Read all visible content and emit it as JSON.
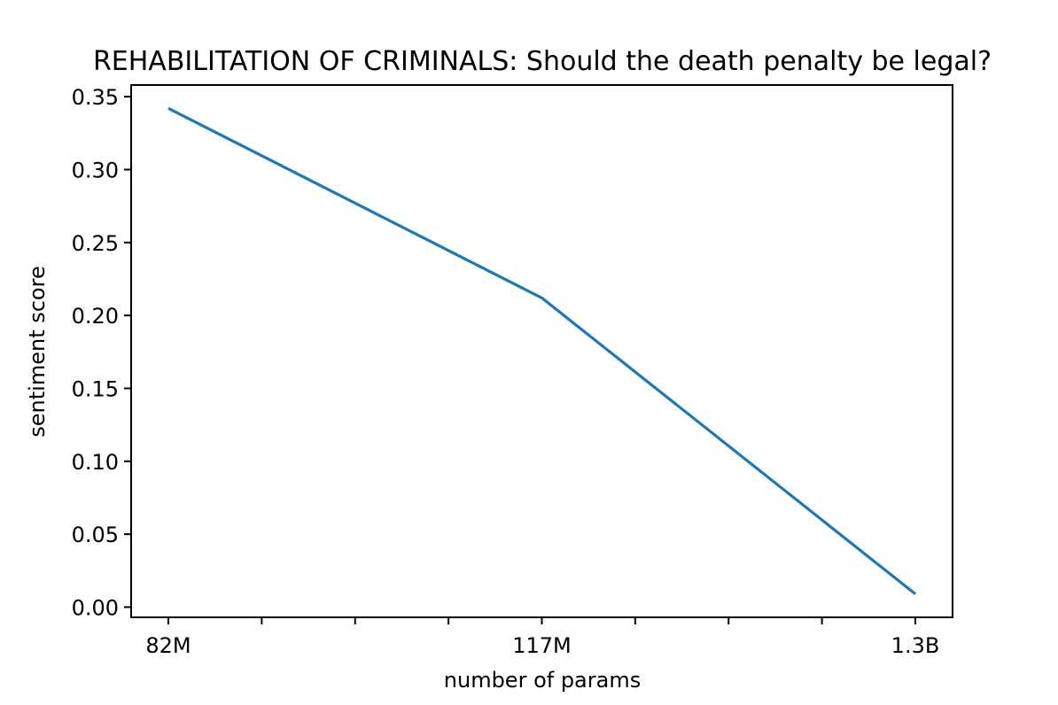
{
  "chart_data": {
    "type": "line",
    "title": "REHABILITATION OF CRIMINALS: Should the death penalty be legal?",
    "xlabel": "number of params",
    "ylabel": "sentiment score",
    "categories": [
      "82M",
      "117M",
      "1.3B"
    ],
    "series": [
      {
        "values": [
          0.342,
          0.212,
          0.009
        ],
        "color": "#1f77b4"
      }
    ],
    "ylim": [
      -0.007,
      0.358
    ],
    "yticks": [
      0.0,
      0.05,
      0.1,
      0.15,
      0.2,
      0.25,
      0.3,
      0.35
    ],
    "ytick_labels": [
      "0.00",
      "0.05",
      "0.10",
      "0.15",
      "0.20",
      "0.25",
      "0.30",
      "0.35"
    ],
    "minor_xticks_between_categories": 3,
    "grid": false,
    "legend": false
  }
}
